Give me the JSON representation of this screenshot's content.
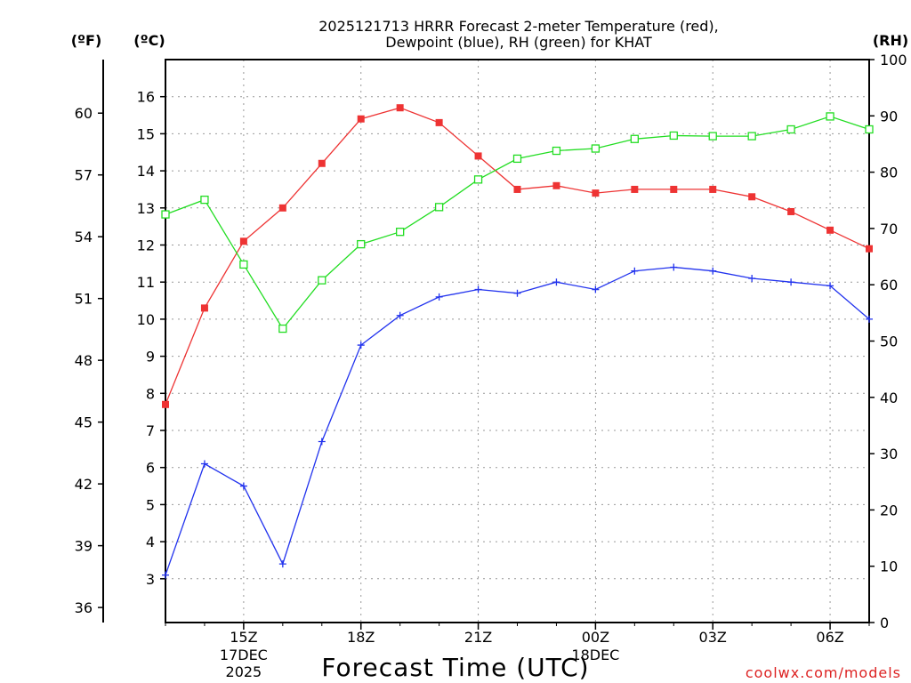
{
  "chart_data": {
    "type": "line",
    "title_line1": "2025121713 HRRR Forecast 2-meter Temperature (red),",
    "title_line2": "Dewpoint (blue), RH (green) for KHAT",
    "left_axis_f": {
      "label": "(ºF)",
      "ticks": [
        "36",
        "39",
        "42",
        "45",
        "48",
        "51",
        "54",
        "57",
        "60"
      ],
      "range": [
        35.27,
        62.6
      ]
    },
    "left_axis_c": {
      "label": "(ºC)",
      "ticks": [
        "3",
        "4",
        "5",
        "6",
        "7",
        "8",
        "9",
        "10",
        "11",
        "12",
        "13",
        "14",
        "15",
        "16"
      ],
      "range": [
        1.82,
        17.0
      ]
    },
    "right_axis_rh": {
      "label": "(RH)",
      "ticks": [
        "0",
        "10",
        "20",
        "30",
        "40",
        "50",
        "60",
        "70",
        "80",
        "90",
        "100"
      ],
      "range": [
        0,
        100
      ]
    },
    "x": [
      13,
      14,
      15,
      16,
      17,
      18,
      19,
      20,
      21,
      22,
      23,
      24,
      25,
      26,
      27,
      28,
      29,
      30,
      31
    ],
    "xlim": [
      13,
      31
    ],
    "x_ticks": [
      {
        "x": 15,
        "label": "15Z"
      },
      {
        "x": 18,
        "label": "18Z"
      },
      {
        "x": 21,
        "label": "21Z"
      },
      {
        "x": 24,
        "label": "00Z"
      },
      {
        "x": 27,
        "label": "03Z"
      },
      {
        "x": 30,
        "label": "06Z"
      }
    ],
    "date_labels": [
      {
        "x": 15,
        "line1": "17DEC",
        "line2": "2025"
      },
      {
        "x": 24,
        "line1": "18DEC",
        "line2": ""
      }
    ],
    "xlabel": "Forecast Time (UTC)",
    "watermark": "coolwx.com/models",
    "series": [
      {
        "name": "Temperature",
        "axis": "celsius",
        "color": "#ee3333",
        "marker": "filled-square",
        "values": [
          7.7,
          10.3,
          12.1,
          13.0,
          14.2,
          15.4,
          15.7,
          15.3,
          14.4,
          13.5,
          13.6,
          13.4,
          13.5,
          13.5,
          13.5,
          13.3,
          12.9,
          12.4,
          11.9
        ]
      },
      {
        "name": "Dewpoint",
        "axis": "celsius",
        "color": "#2233ee",
        "marker": "plus",
        "values": [
          3.1,
          6.1,
          5.5,
          3.4,
          6.7,
          9.3,
          10.1,
          10.6,
          10.8,
          10.7,
          11.0,
          10.8,
          11.3,
          11.4,
          11.3,
          11.1,
          11.0,
          10.9,
          10.0
        ]
      },
      {
        "name": "Relative Humidity",
        "axis": "rh",
        "color": "#22dd22",
        "marker": "open-square",
        "values": [
          72.5,
          75.1,
          63.6,
          52.2,
          60.8,
          67.2,
          69.4,
          73.8,
          78.7,
          82.4,
          83.8,
          84.2,
          85.9,
          86.5,
          86.4,
          86.4,
          87.6,
          89.9,
          87.6
        ]
      }
    ]
  }
}
